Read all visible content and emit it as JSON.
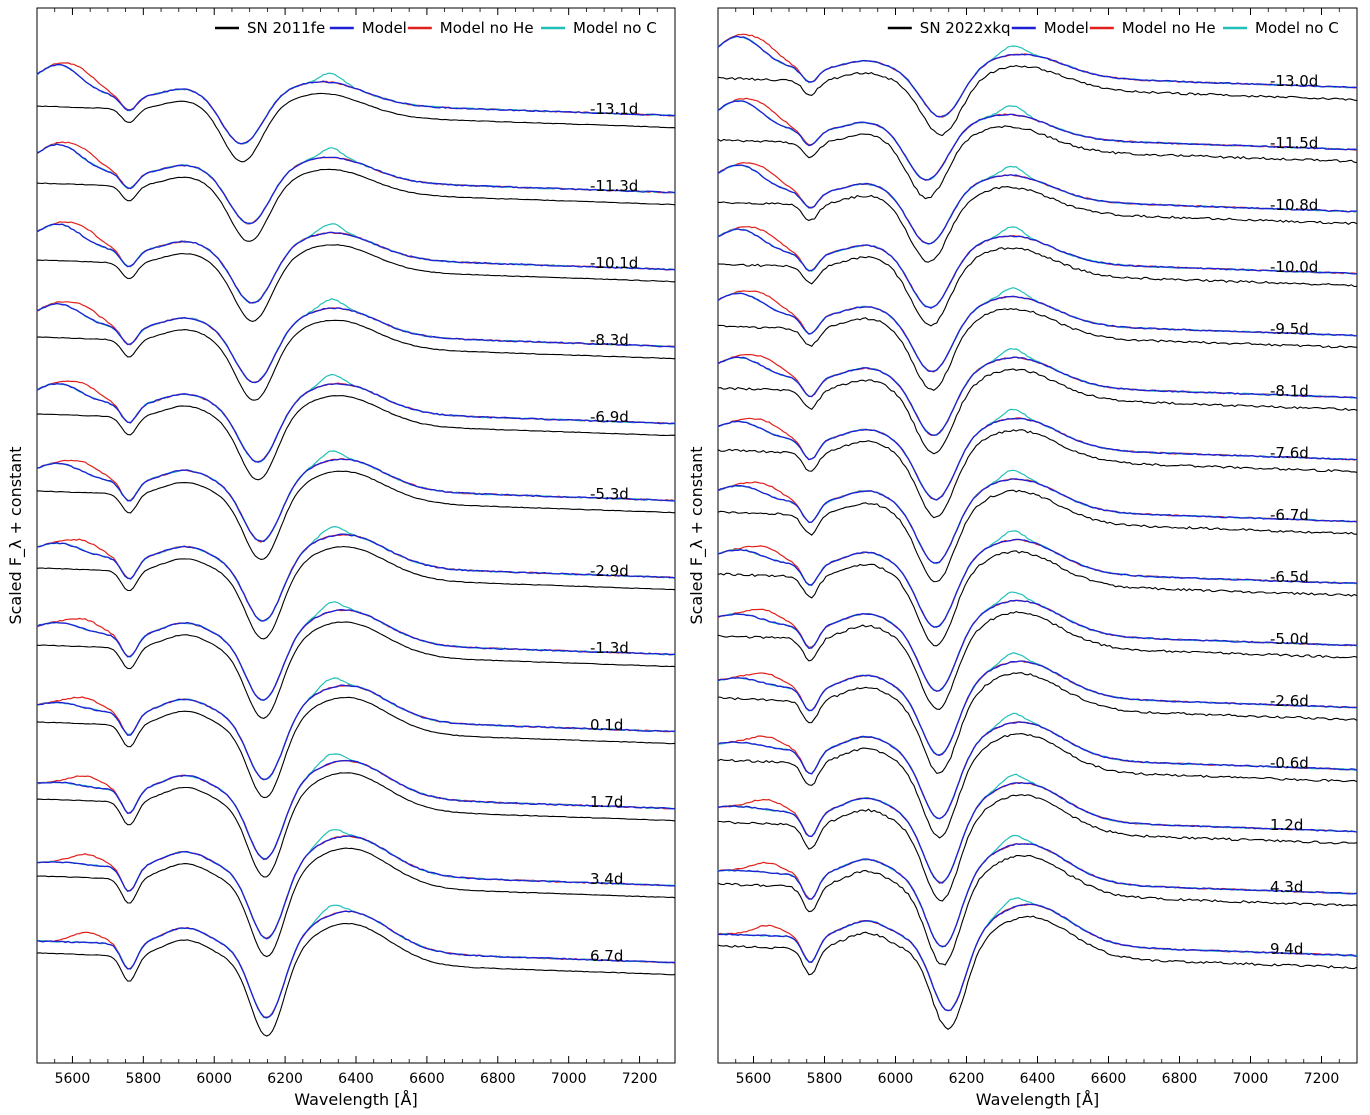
{
  "chart_data": [
    {
      "type": "line",
      "xlabel": "Wavelength [Å]",
      "ylabel": "Scaled F_λ + constant",
      "xlim": [
        5500,
        7300
      ],
      "xticks": [
        5600,
        5800,
        6000,
        6200,
        6400,
        6600,
        6800,
        7000,
        7200
      ],
      "tick_labels": [
        "5600",
        "5800",
        "6000",
        "6200",
        "6400",
        "6600",
        "6800",
        "7000",
        "7200"
      ],
      "y_ticks_shown": false,
      "grid": false,
      "legend_position": "top-right",
      "legend": [
        {
          "label": "SN 2011fe",
          "color": "#000000"
        },
        {
          "label": "Model",
          "color": "#1f1fd6"
        },
        {
          "label": "Model no He",
          "color": "#e0201c"
        },
        {
          "label": "Model no C",
          "color": "#20c0b8"
        }
      ],
      "epochs": [
        "-13.1d",
        "-11.3d",
        "-10.1d",
        "-8.3d",
        "-6.9d",
        "-5.3d",
        "-2.9d",
        "-1.3d",
        "0.1d",
        "1.7d",
        "3.4d",
        "6.7d"
      ],
      "si_ii_absorption_minimum_angstrom": [
        6080,
        6100,
        6110,
        6115,
        6125,
        6135,
        6140,
        6140,
        6145,
        6145,
        6150,
        6150
      ]
    },
    {
      "type": "line",
      "xlabel": "Wavelength [Å]",
      "ylabel": "Scaled F_λ + constant",
      "xlim": [
        5500,
        7300
      ],
      "xticks": [
        5600,
        5800,
        6000,
        6200,
        6400,
        6600,
        6800,
        7000,
        7200
      ],
      "tick_labels": [
        "5600",
        "5800",
        "6000",
        "6200",
        "6400",
        "6600",
        "6800",
        "7000",
        "7200"
      ],
      "y_ticks_shown": false,
      "grid": false,
      "legend_position": "top-right",
      "legend": [
        {
          "label": "SN 2022xkq",
          "color": "#000000"
        },
        {
          "label": "Model",
          "color": "#1f1fd6"
        },
        {
          "label": "Model no He",
          "color": "#e0201c"
        },
        {
          "label": "Model no C",
          "color": "#20c0b8"
        }
      ],
      "epochs": [
        "-13.0d",
        "-11.5d",
        "-10.8d",
        "-10.0d",
        "-9.5d",
        "-8.1d",
        "-7.6d",
        "-6.7d",
        "-6.5d",
        "-5.0d",
        "-2.6d",
        "-0.6d",
        "1.2d",
        "4.3d",
        "9.4d"
      ],
      "si_ii_absorption_minimum_angstrom": [
        6130,
        6090,
        6095,
        6100,
        6105,
        6110,
        6115,
        6115,
        6115,
        6120,
        6125,
        6125,
        6130,
        6135,
        6150
      ]
    }
  ]
}
